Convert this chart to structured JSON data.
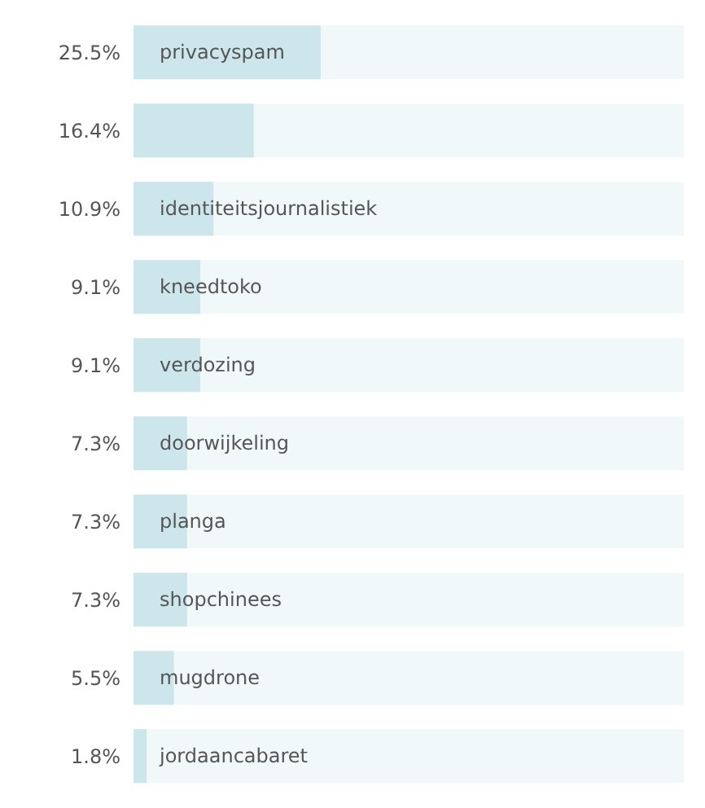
{
  "chart_data": {
    "type": "bar",
    "orientation": "horizontal",
    "categories": [
      "privacyspam",
      null,
      "identiteitsjournalistiek",
      "kneedtoko",
      "verdozing",
      "doorwijkeling",
      "planga",
      "shopchinees",
      "mugdrone",
      "jordaancabaret"
    ],
    "values": [
      25.5,
      16.4,
      10.9,
      9.1,
      9.1,
      7.3,
      7.3,
      7.3,
      5.5,
      1.8
    ],
    "value_labels": [
      "25.5%",
      "16.4%",
      "10.9%",
      "9.1%",
      "9.1%",
      "7.3%",
      "7.3%",
      "7.3%",
      "5.5%",
      "1.8%"
    ],
    "color": "#cde6eb",
    "xlim": [
      0,
      75
    ]
  }
}
